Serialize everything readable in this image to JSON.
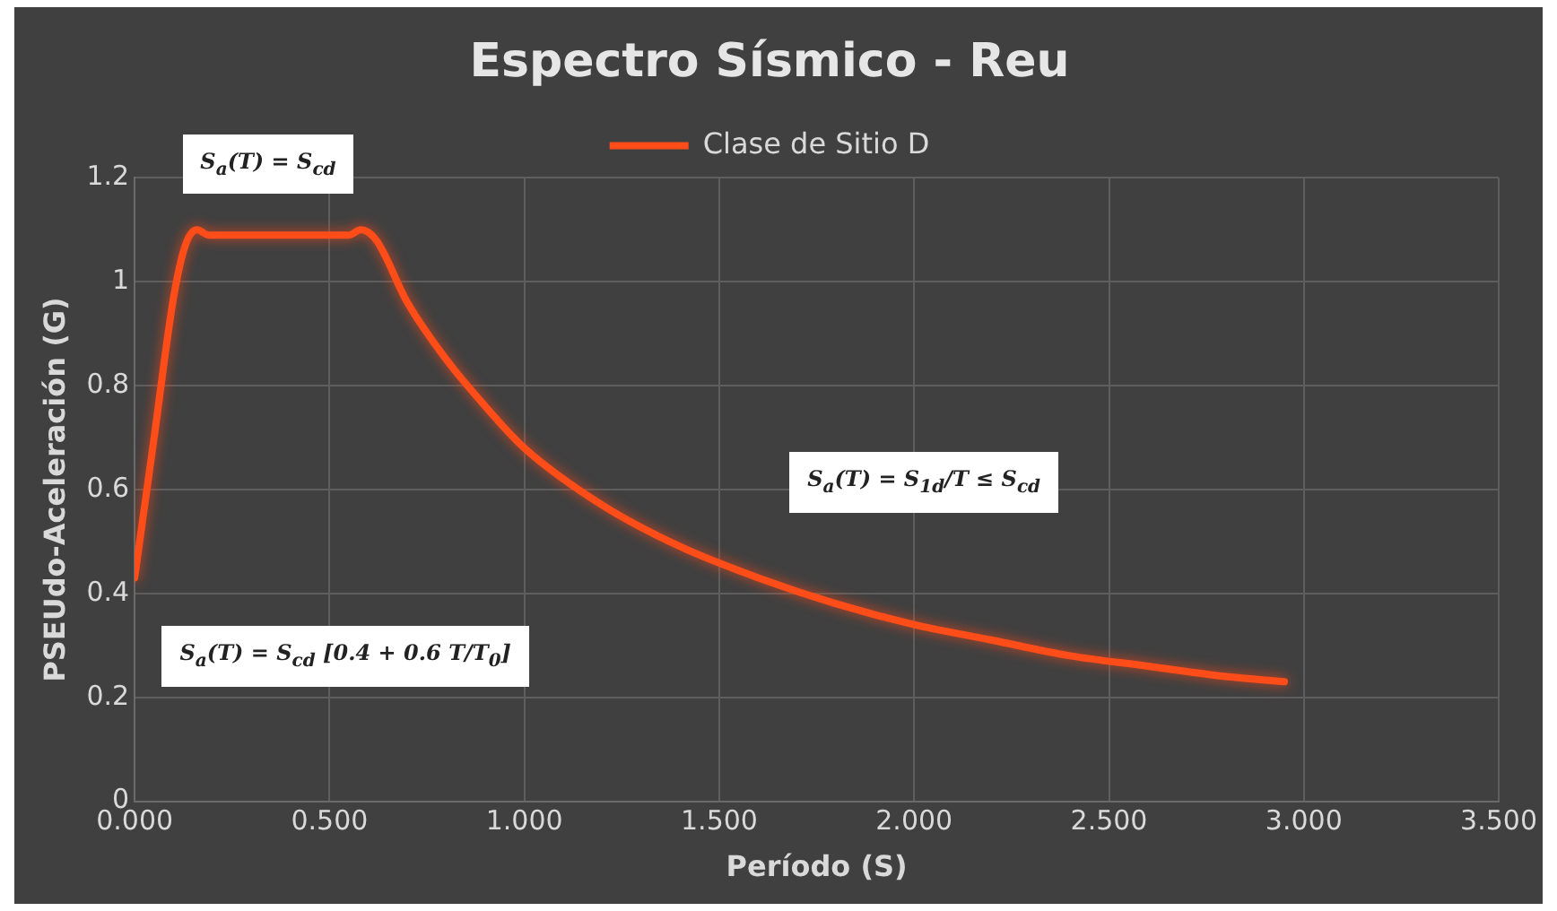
{
  "chart_data": {
    "type": "line",
    "title": "Espectro Sísmico - Reu",
    "xlabel": "Período (S)",
    "ylabel": "PSEUdo-Aceleración (G)",
    "x": [
      0,
      0.05,
      0.1,
      0.13,
      0.16,
      0.19,
      0.3,
      0.45,
      0.55,
      0.58,
      0.62,
      0.7,
      0.8,
      0.9,
      1.0,
      1.2,
      1.4,
      1.6,
      1.8,
      2.0,
      2.2,
      2.4,
      2.6,
      2.8,
      2.95
    ],
    "series": [
      {
        "name": "Clase de Sitio D",
        "color": "#ff4d1a",
        "values": [
          0.43,
          0.7,
          0.97,
          1.07,
          1.1,
          1.09,
          1.09,
          1.09,
          1.09,
          1.1,
          1.08,
          0.96,
          0.85,
          0.76,
          0.68,
          0.57,
          0.49,
          0.43,
          0.38,
          0.34,
          0.31,
          0.28,
          0.26,
          0.24,
          0.23
        ]
      }
    ],
    "xlim": [
      0,
      3.5
    ],
    "xticks": [
      {
        "value": 0,
        "label": "0.000"
      },
      {
        "value": 0.5,
        "label": "0.500"
      },
      {
        "value": 1,
        "label": "1.000"
      },
      {
        "value": 1.5,
        "label": "1.500"
      },
      {
        "value": 2,
        "label": "2.000"
      },
      {
        "value": 2.5,
        "label": "2.500"
      },
      {
        "value": 3,
        "label": "3.000"
      },
      {
        "value": 3.5,
        "label": "3.500"
      }
    ],
    "ylim": [
      0,
      1.2
    ],
    "yticks": [
      0,
      0.2,
      0.4,
      0.6,
      0.8,
      1,
      1.2
    ],
    "annotations": [
      "S$_{a}$(T) = S$_{cd}$",
      "S$_{a}$(T) = S$_{cd}$ [0.4 + 0.6 T/T$_{0}$]",
      "S$_{a}$(T) = S$_{1d}$/T ≤ S$_{cd}$"
    ],
    "grid": true,
    "legend": "top",
    "marker": "none",
    "line_style": "solid"
  }
}
